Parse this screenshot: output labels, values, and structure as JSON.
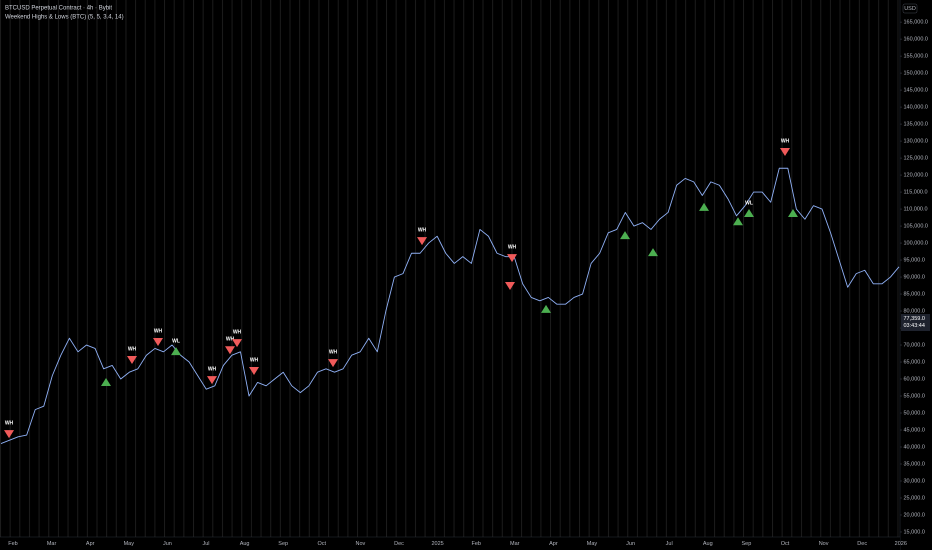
{
  "chart_data": {
    "type": "line",
    "title": "BTCUSD Perpetual Contract · 4h · Bybit",
    "subtitle": "Weekend Highs & Lows (BTC) (5, 5, 3.4, 14)",
    "y_unit": "USD",
    "color": "#8fb0f5",
    "x_tick_labels": [
      "Feb",
      "Mar",
      "Apr",
      "May",
      "Jun",
      "Jul",
      "Aug",
      "Sep",
      "Oct",
      "Nov",
      "Dec",
      "2025",
      "Feb",
      "Mar",
      "Apr",
      "May",
      "Jun",
      "Jul",
      "Aug",
      "Sep",
      "Oct",
      "Nov",
      "Dec",
      "2026"
    ],
    "values": [
      41000,
      42000,
      43000,
      43500,
      51000,
      52000,
      61000,
      67000,
      72000,
      68000,
      70000,
      69000,
      63000,
      64000,
      60000,
      62000,
      63000,
      67000,
      69000,
      68000,
      70000,
      67000,
      65000,
      61000,
      57000,
      58000,
      64000,
      67000,
      68000,
      55000,
      59000,
      58000,
      60000,
      62000,
      58000,
      56000,
      58000,
      62000,
      63000,
      62000,
      63000,
      67000,
      68000,
      72000,
      68000,
      80000,
      90000,
      91000,
      97000,
      97000,
      100000,
      102000,
      97000,
      94000,
      96000,
      94000,
      104000,
      102000,
      97000,
      96000,
      96000,
      88000,
      84000,
      83000,
      84000,
      82000,
      82000,
      84000,
      85000,
      94000,
      97000,
      103000,
      104000,
      109000,
      105000,
      106000,
      104000,
      107000,
      109000,
      117000,
      119000,
      118000,
      114000,
      118000,
      117000,
      113000,
      108000,
      111000,
      115000,
      115000,
      112000,
      122000,
      122000,
      110000,
      107000,
      111000,
      110000,
      103000,
      95000,
      87000,
      91000,
      92000,
      88000,
      88000,
      90000,
      93000
    ],
    "markers": [
      {
        "label": "WH",
        "kind": "high",
        "value": 42600
      },
      {
        "kind": "low",
        "value": 60300
      },
      {
        "label": "WH",
        "kind": "high",
        "value": 64400
      },
      {
        "label": "WH",
        "kind": "high",
        "value": 69700
      },
      {
        "label": "WL",
        "kind": "low",
        "value": 69400
      },
      {
        "label": "WH",
        "kind": "high",
        "value": 58500
      },
      {
        "label": "WH",
        "kind": "high",
        "value": 67300
      },
      {
        "label": "WH",
        "kind": "high",
        "value": 69400
      },
      {
        "label": "WH",
        "kind": "high",
        "value": 61200
      },
      {
        "label": "WH",
        "kind": "high",
        "value": 63500
      },
      {
        "label": "WH",
        "kind": "high",
        "value": 99400
      },
      {
        "label": "WH",
        "kind": "high",
        "value": 94400
      },
      {
        "kind": "high",
        "value": 86200
      },
      {
        "kind": "low",
        "value": 81800
      },
      {
        "kind": "low",
        "value": 103500
      },
      {
        "kind": "low",
        "value": 98500
      },
      {
        "kind": "low",
        "value": 111800
      },
      {
        "kind": "low",
        "value": 107600
      },
      {
        "label": "WL",
        "kind": "low",
        "value": 110000
      },
      {
        "label": "WH",
        "kind": "high",
        "value": 125600
      },
      {
        "kind": "low",
        "value": 110000
      }
    ],
    "high_color": "#f05a5a",
    "low_color": "#4caf50",
    "last_price": {
      "value": 77359,
      "label": "77,359.0"
    },
    "countdown": "03:43:44",
    "ylim": [
      9700,
      171500
    ],
    "yticks": [
      {
        "value": 15000,
        "label": "15,000.0"
      },
      {
        "value": 20000,
        "label": "20,000.0"
      },
      {
        "value": 25000,
        "label": "25,000.0"
      },
      {
        "value": 30000,
        "label": "30,000.0"
      },
      {
        "value": 35000,
        "label": "35,000.0"
      },
      {
        "value": 40000,
        "label": "40,000.0"
      },
      {
        "value": 45000,
        "label": "45,000.0"
      },
      {
        "value": 50000,
        "label": "50,000.0"
      },
      {
        "value": 55000,
        "label": "55,000.0"
      },
      {
        "value": 60000,
        "label": "60,000.0"
      },
      {
        "value": 65000,
        "label": "65,000.0"
      },
      {
        "value": 70000,
        "label": "70,000.0"
      },
      {
        "value": 75000,
        "label": "75,000.0"
      },
      {
        "value": 80000,
        "label": "80,000.0"
      },
      {
        "value": 85000,
        "label": "85,000.0"
      },
      {
        "value": 90000,
        "label": "90,000.0"
      },
      {
        "value": 95000,
        "label": "95,000.0"
      },
      {
        "value": 100000,
        "label": "100,000.0"
      },
      {
        "value": 105000,
        "label": "105,000.0"
      },
      {
        "value": 110000,
        "label": "110,000.0"
      },
      {
        "value": 115000,
        "label": "115,000.0"
      },
      {
        "value": 120000,
        "label": "120,000.0"
      },
      {
        "value": 125000,
        "label": "125,000.0"
      },
      {
        "value": 130000,
        "label": "130,000.0"
      },
      {
        "value": 135000,
        "label": "135,000.0"
      },
      {
        "value": 140000,
        "label": "140,000.0"
      },
      {
        "value": 145000,
        "label": "145,000.0"
      },
      {
        "value": 150000,
        "label": "150,000.0"
      },
      {
        "value": 155000,
        "label": "155,000.0"
      },
      {
        "value": 160000,
        "label": "160,000.0"
      },
      {
        "value": 165000,
        "label": "165,000.0"
      }
    ]
  }
}
